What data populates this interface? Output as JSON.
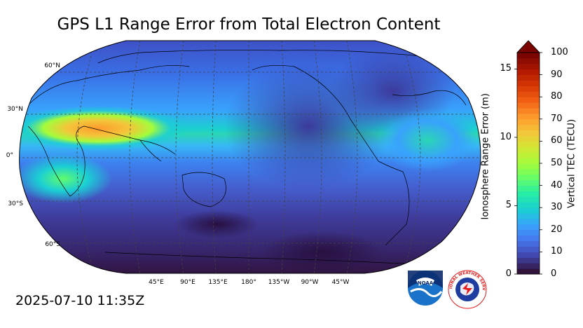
{
  "title": "GPS L1 Range Error from Total Electron Content",
  "timestamp": "2025-07-10 11:35Z",
  "map": {
    "lat_labels": [
      "60°N",
      "30°N",
      "0°",
      "30°S",
      "60°S"
    ],
    "lon_labels": [
      "45°E",
      "90°E",
      "135°E",
      "180°",
      "135°W",
      "90°W",
      "45°W"
    ],
    "central_longitude": "180°",
    "projection": "robinson"
  },
  "colorbar": {
    "left_label": "Ionosphere Range Error (m)",
    "right_label": "Vertical TEC (TECU)",
    "left_ticks": [
      "0",
      "5",
      "10",
      "15"
    ],
    "right_ticks": [
      "0",
      "10",
      "20",
      "30",
      "40",
      "50",
      "60",
      "70",
      "80",
      "90",
      "100"
    ],
    "tec_range": [
      0,
      100
    ],
    "range_error_range": [
      0,
      16.2
    ],
    "colors": [
      "#30123b",
      "#4145ab",
      "#4675ed",
      "#39a2fc",
      "#1bcfd4",
      "#24eca6",
      "#61fc6c",
      "#a4fc3b",
      "#d1e834",
      "#f3c63a",
      "#fe9b2d",
      "#f36315",
      "#d93806",
      "#b11901",
      "#7a0402"
    ]
  },
  "logos": {
    "noaa": "NOAA",
    "nws": "NATIONAL WEATHER SERVICE"
  }
}
